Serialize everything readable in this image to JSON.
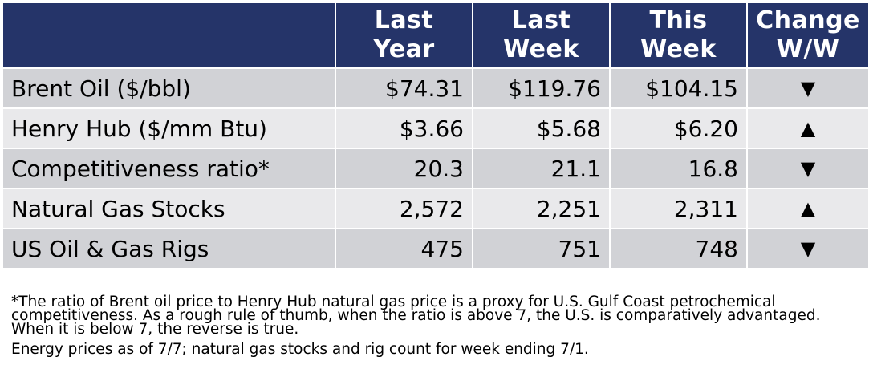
{
  "table": {
    "headers": [
      {
        "line1": "",
        "line2": ""
      },
      {
        "line1": "Last",
        "line2": "Year"
      },
      {
        "line1": "Last",
        "line2": "Week"
      },
      {
        "line1": "This",
        "line2": "Week"
      },
      {
        "line1": "Change",
        "line2": "W/W"
      }
    ],
    "rows": [
      {
        "label": "Brent Oil ($/bbl)",
        "last_year": "$74.31",
        "last_week": "$119.76",
        "this_week": "$104.15",
        "change": "▼",
        "change_icon": "down-triangle-icon"
      },
      {
        "label": "Henry Hub ($/mm Btu)",
        "last_year": "$3.66",
        "last_week": "$5.68",
        "this_week": "$6.20",
        "change": "▲",
        "change_icon": "up-triangle-icon"
      },
      {
        "label": "Competitiveness ratio*",
        "last_year": "20.3",
        "last_week": "21.1",
        "this_week": "16.8",
        "change": "▼",
        "change_icon": "down-triangle-icon"
      },
      {
        "label": "Natural Gas Stocks",
        "last_year": "2,572",
        "last_week": "2,251",
        "this_week": "2,311",
        "change": "▲",
        "change_icon": "up-triangle-icon"
      },
      {
        "label": "US Oil & Gas Rigs",
        "last_year": "475",
        "last_week": "751",
        "this_week": "748",
        "change": "▼",
        "change_icon": "down-triangle-icon"
      }
    ]
  },
  "notes": {
    "footnote": "*The ratio of Brent oil price to Henry Hub natural gas price is a proxy for U.S. Gulf Coast petrochemical competitiveness. As a rough rule of thumb, when the ratio is above 7, the U.S. is comparatively advantaged. When it is below 7, the reverse is true.",
    "as_of": "Energy prices as of 7/7; natural gas stocks and rig count for week ending 7/1."
  },
  "colors": {
    "header_bg": "#253469",
    "row_dark": "#d1d2d6",
    "row_light": "#e9e9eb"
  }
}
